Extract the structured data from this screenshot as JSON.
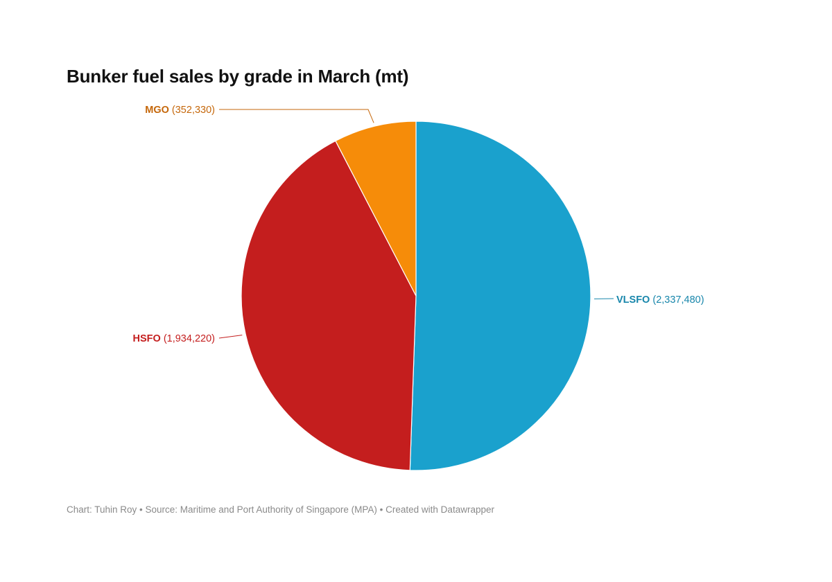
{
  "chart_data": {
    "type": "pie",
    "title": "Bunker fuel sales by grade in March (mt)",
    "slices": [
      {
        "name": "VLSFO",
        "value": 2337480,
        "value_label": "(2,337,480)",
        "color": "#1aa1cd",
        "label_color": "#1786ab"
      },
      {
        "name": "HSFO",
        "value": 1934220,
        "value_label": "(1,934,220)",
        "color": "#c41e1e",
        "label_color": "#c41e1e"
      },
      {
        "name": "MGO",
        "value": 352330,
        "value_label": "(352,330)",
        "color": "#f68c09",
        "label_color": "#c5670a"
      }
    ],
    "start_angle": "12 o'clock",
    "direction": "clockwise"
  },
  "footer": {
    "text": "Chart: Tuhin Roy • Source: Maritime and Port Authority of Singapore (MPA) • Created with Datawrapper"
  }
}
